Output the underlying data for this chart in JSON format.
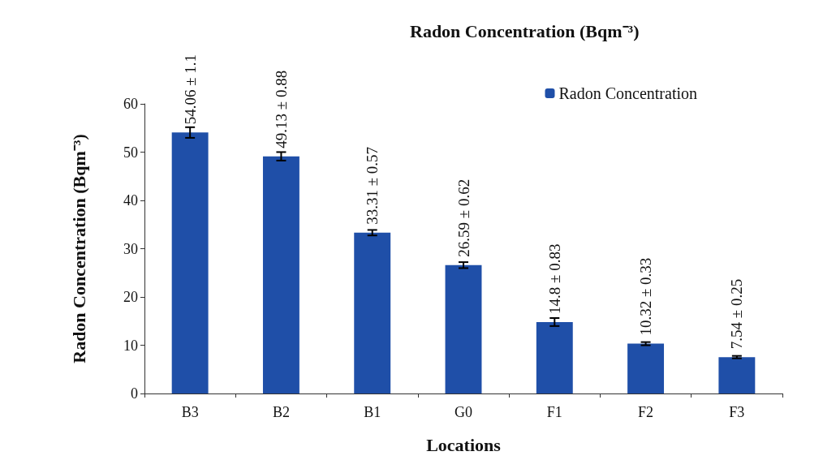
{
  "chart_data": {
    "type": "bar",
    "title": "Radon Concentration (Bqm⁻³)",
    "xlabel": "Locations",
    "ylabel": "Radon Concentration (Bqm⁻³)",
    "categories": [
      "B3",
      "B2",
      "B1",
      "G0",
      "F1",
      "F2",
      "F3"
    ],
    "series": [
      {
        "name": "Radon Concentration",
        "color": "#1f4fa8",
        "values": [
          54.06,
          49.13,
          33.31,
          26.59,
          14.8,
          10.32,
          7.54
        ],
        "errors": [
          1.1,
          0.88,
          0.57,
          0.62,
          0.83,
          0.33,
          0.25
        ],
        "value_labels": [
          "54.06 ± 1.1",
          "49.13 ± 0.88",
          "33.31 ± 0.57",
          "26.59 ± 0.62",
          "14.8 ± 0.83",
          "10.32 ± 0.33",
          "7.54 ± 0.25"
        ]
      }
    ],
    "ylim": [
      0,
      60
    ],
    "yticks": [
      0,
      10,
      20,
      30,
      40,
      50,
      60
    ],
    "grid": false,
    "legend": "top right"
  }
}
